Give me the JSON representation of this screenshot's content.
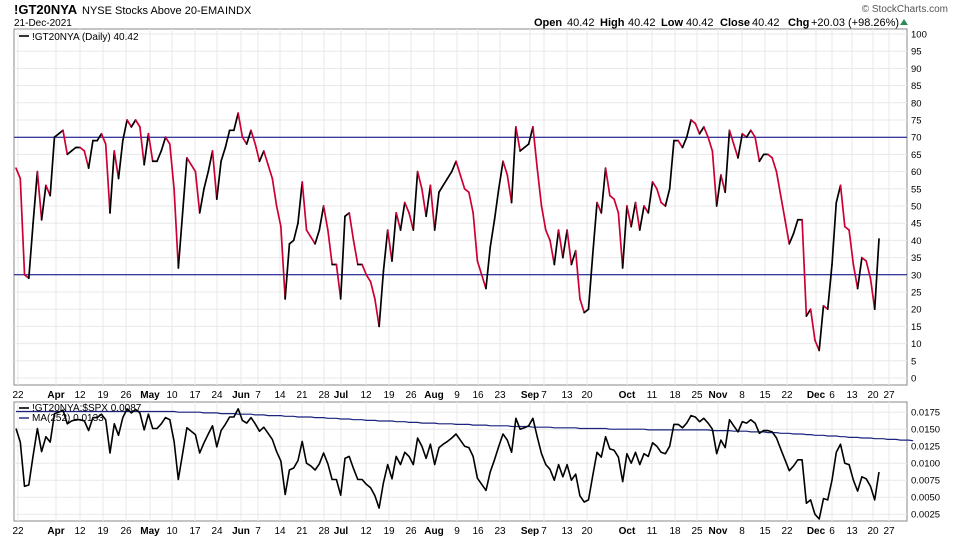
{
  "header": {
    "symbol": "!GT20NYA",
    "name": "NYSE Stocks Above 20-EMA",
    "exchange": "INDX",
    "date": "21-Dec-2021",
    "watermark": "© StockCharts.com",
    "open_label": "Open",
    "open": "40.42",
    "high_label": "High",
    "high": "40.42",
    "low_label": "Low",
    "low": "40.42",
    "close_label": "Close",
    "close": "40.42",
    "chg_label": "Chg",
    "chg": "+20.03 (+98.26%)",
    "up_arrow": "triangle-up-icon"
  },
  "colors": {
    "up": "#000000",
    "down": "#cc0033",
    "reference": "#000080",
    "ma": "#1a237e",
    "grid": "#e8e8e8",
    "border": "#888888"
  },
  "chart_data": [
    {
      "type": "line",
      "legend": "!GT20NYA (Daily) 40.42",
      "ylim": [
        0,
        100
      ],
      "ytick_labels": [
        "0",
        "5",
        "10",
        "15",
        "20",
        "25",
        "30",
        "35",
        "40",
        "45",
        "50",
        "55",
        "60",
        "65",
        "70",
        "75",
        "80",
        "85",
        "90",
        "95",
        "100"
      ],
      "reference_lines": [
        70,
        30
      ],
      "x_tick_labels": [
        "22",
        "Apr",
        "12",
        "19",
        "26",
        "May",
        "10",
        "17",
        "24",
        "Jun",
        "7",
        "14",
        "21",
        "28",
        "Jul",
        "12",
        "19",
        "26",
        "Aug",
        "9",
        "16",
        "23",
        "Sep",
        "7",
        "13",
        "20",
        "Oct",
        "11",
        "18",
        "25",
        "Nov",
        "8",
        "15",
        "22",
        "Dec",
        "6",
        "13",
        "20",
        "27"
      ],
      "series": [
        {
          "values": [
            61,
            58,
            30,
            29,
            45,
            60,
            46,
            56,
            53,
            70,
            71,
            72,
            65,
            66,
            67,
            67,
            66,
            61,
            69,
            69,
            71,
            68,
            48,
            66,
            58,
            69,
            75,
            73,
            75,
            73,
            62,
            71,
            63,
            63,
            66,
            70,
            68,
            55,
            32,
            48,
            64,
            62,
            60,
            48,
            55,
            60,
            66,
            52,
            63,
            67,
            72,
            72,
            77,
            70,
            68,
            72,
            68,
            63,
            66,
            62,
            58,
            50,
            44,
            23,
            39,
            40,
            45,
            57,
            43,
            41,
            39,
            43,
            50,
            43,
            33,
            33,
            23,
            47,
            48,
            40,
            33,
            33,
            30,
            28,
            23,
            15,
            31,
            43,
            34,
            48,
            43,
            51,
            48,
            43,
            60,
            55,
            47,
            56,
            43,
            54,
            56,
            58,
            60,
            63,
            59,
            55,
            54,
            48,
            34,
            30,
            26,
            38,
            46,
            55,
            63,
            59,
            51,
            73,
            66,
            67,
            68,
            73,
            61,
            50,
            43,
            40,
            33,
            43,
            35,
            43,
            33,
            37,
            23,
            19,
            20,
            36,
            51,
            48,
            61,
            53,
            52,
            48,
            32,
            50,
            44,
            51,
            43,
            50,
            48,
            57,
            55,
            51,
            50,
            55,
            69,
            69,
            67,
            70,
            75,
            74,
            71,
            73,
            70,
            66,
            50,
            59,
            54,
            72,
            68,
            64,
            71,
            70,
            72,
            70,
            63,
            65,
            65,
            64,
            60,
            53,
            46,
            39,
            42,
            46,
            46,
            18,
            20,
            11,
            8,
            21,
            20,
            33,
            51,
            56,
            44,
            43,
            33,
            26,
            35,
            34,
            29,
            20,
            40.42
          ]
        }
      ]
    },
    {
      "type": "line",
      "legend": "!GT20NYA:$SPX 0.0087",
      "ma_legend": "MA(252) 0.0133",
      "ylim": [
        0.0015,
        0.019
      ],
      "ytick_labels": [
        "0.0025",
        "0.0050",
        "0.0075",
        "0.0100",
        "0.0125",
        "0.0150",
        "0.0175"
      ],
      "x_tick_labels": [
        "22",
        "Apr",
        "12",
        "19",
        "26",
        "May",
        "10",
        "17",
        "24",
        "Jun",
        "7",
        "14",
        "21",
        "28",
        "Jul",
        "12",
        "19",
        "26",
        "Aug",
        "9",
        "16",
        "23",
        "Sep",
        "7",
        "13",
        "20",
        "Oct",
        "11",
        "18",
        "25",
        "Nov",
        "8",
        "15",
        "22",
        "Dec",
        "6",
        "13",
        "20",
        "27"
      ],
      "series": [
        {
          "name": "!GT20NYA:$SPX",
          "values": [
            0.0151,
            0.0131,
            0.0066,
            0.0068,
            0.0111,
            0.0151,
            0.0117,
            0.0139,
            0.0131,
            0.0173,
            0.0175,
            0.0178,
            0.0158,
            0.0162,
            0.0164,
            0.0164,
            0.0162,
            0.0148,
            0.0167,
            0.0167,
            0.0172,
            0.0164,
            0.0115,
            0.0158,
            0.0141,
            0.0167,
            0.018,
            0.0174,
            0.0179,
            0.0174,
            0.0149,
            0.0172,
            0.0151,
            0.0151,
            0.0158,
            0.0167,
            0.0164,
            0.0132,
            0.0076,
            0.0114,
            0.0152,
            0.0147,
            0.0142,
            0.0115,
            0.013,
            0.0143,
            0.0155,
            0.0124,
            0.0148,
            0.0157,
            0.0168,
            0.0168,
            0.018,
            0.0163,
            0.0159,
            0.0167,
            0.0158,
            0.0147,
            0.0153,
            0.0144,
            0.0135,
            0.0117,
            0.0103,
            0.0054,
            0.009,
            0.0093,
            0.0104,
            0.0132,
            0.01,
            0.0096,
            0.009,
            0.0099,
            0.0115,
            0.0099,
            0.0076,
            0.0076,
            0.0053,
            0.0107,
            0.011,
            0.0092,
            0.0076,
            0.0076,
            0.0069,
            0.0064,
            0.0052,
            0.0034,
            0.0071,
            0.0098,
            0.0077,
            0.011,
            0.0098,
            0.0116,
            0.011,
            0.0098,
            0.0137,
            0.0125,
            0.0107,
            0.0128,
            0.0098,
            0.0123,
            0.0128,
            0.0132,
            0.0137,
            0.0143,
            0.0134,
            0.0125,
            0.0123,
            0.011,
            0.0078,
            0.0069,
            0.006,
            0.0087,
            0.0105,
            0.0125,
            0.0143,
            0.0134,
            0.0116,
            0.0166,
            0.015,
            0.0152,
            0.0155,
            0.0166,
            0.0139,
            0.0114,
            0.0098,
            0.0091,
            0.0075,
            0.0098,
            0.008,
            0.0098,
            0.0075,
            0.0084,
            0.0052,
            0.0043,
            0.0046,
            0.0082,
            0.0116,
            0.0109,
            0.0139,
            0.0121,
            0.0119,
            0.0109,
            0.0073,
            0.0114,
            0.01,
            0.0116,
            0.0098,
            0.0114,
            0.011,
            0.013,
            0.0125,
            0.0116,
            0.0114,
            0.0125,
            0.0157,
            0.0157,
            0.0152,
            0.0159,
            0.017,
            0.0168,
            0.0161,
            0.0166,
            0.0159,
            0.015,
            0.0114,
            0.0134,
            0.0123,
            0.0164,
            0.0155,
            0.0146,
            0.0161,
            0.0159,
            0.0164,
            0.0159,
            0.0144,
            0.0148,
            0.0148,
            0.0146,
            0.0137,
            0.0121,
            0.0105,
            0.0089,
            0.0096,
            0.0105,
            0.0105,
            0.0041,
            0.0046,
            0.0025,
            0.0018,
            0.0048,
            0.0046,
            0.0075,
            0.0116,
            0.0128,
            0.01,
            0.0098,
            0.0075,
            0.0059,
            0.008,
            0.0077,
            0.0066,
            0.0046,
            0.0087
          ]
        },
        {
          "name": "MA(252)",
          "values": [
            0.0176,
            0.0176,
            0.0176,
            0.0176,
            0.0176,
            0.0176,
            0.0176,
            0.0176,
            0.0176,
            0.0176,
            0.0176,
            0.0176,
            0.0176,
            0.0176,
            0.0176,
            0.0176,
            0.0176,
            0.0176,
            0.0176,
            0.0176,
            0.0176,
            0.0176,
            0.0176,
            0.0176,
            0.0176,
            0.0176,
            0.0176,
            0.0176,
            0.0176,
            0.0176,
            0.0176,
            0.0176,
            0.0176,
            0.0176,
            0.0176,
            0.0176,
            0.0176,
            0.0176,
            0.0175,
            0.0175,
            0.0175,
            0.0175,
            0.0175,
            0.0175,
            0.0174,
            0.0174,
            0.0174,
            0.0174,
            0.0173,
            0.0173,
            0.0173,
            0.0173,
            0.0172,
            0.0172,
            0.0172,
            0.0172,
            0.0171,
            0.0171,
            0.0171,
            0.017,
            0.017,
            0.017,
            0.017,
            0.0169,
            0.0169,
            0.0169,
            0.0168,
            0.0168,
            0.0168,
            0.0168,
            0.0167,
            0.0167,
            0.0167,
            0.0166,
            0.0166,
            0.0166,
            0.0165,
            0.0165,
            0.0165,
            0.0164,
            0.0164,
            0.0164,
            0.0163,
            0.0163,
            0.0163,
            0.0162,
            0.0162,
            0.0162,
            0.0162,
            0.0161,
            0.0161,
            0.0161,
            0.016,
            0.016,
            0.016,
            0.0159,
            0.0159,
            0.0159,
            0.0159,
            0.0158,
            0.0158,
            0.0158,
            0.0158,
            0.0157,
            0.0157,
            0.0157,
            0.0157,
            0.0156,
            0.0156,
            0.0156,
            0.0156,
            0.0155,
            0.0155,
            0.0155,
            0.0155,
            0.0155,
            0.0154,
            0.0154,
            0.0154,
            0.0154,
            0.0154,
            0.0153,
            0.0153,
            0.0153,
            0.0153,
            0.0153,
            0.0152,
            0.0152,
            0.0152,
            0.0152,
            0.0152,
            0.0152,
            0.0151,
            0.0151,
            0.0151,
            0.0151,
            0.0151,
            0.0151,
            0.0151,
            0.015,
            0.015,
            0.015,
            0.015,
            0.015,
            0.015,
            0.015,
            0.015,
            0.015,
            0.0149,
            0.0149,
            0.0149,
            0.0149,
            0.0149,
            0.0149,
            0.0149,
            0.0149,
            0.0149,
            0.0149,
            0.0149,
            0.0149,
            0.0149,
            0.0149,
            0.0149,
            0.0148,
            0.0148,
            0.0148,
            0.0148,
            0.0148,
            0.0147,
            0.0147,
            0.0147,
            0.0147,
            0.0146,
            0.0146,
            0.0146,
            0.0146,
            0.0145,
            0.0145,
            0.0145,
            0.0144,
            0.0144,
            0.0144,
            0.0143,
            0.0143,
            0.0143,
            0.0142,
            0.0142,
            0.0141,
            0.0141,
            0.0141,
            0.014,
            0.014,
            0.014,
            0.0139,
            0.0139,
            0.0138,
            0.0138,
            0.0138,
            0.0137,
            0.0137,
            0.0137,
            0.0136,
            0.0136,
            0.0136,
            0.0135,
            0.0135,
            0.0135,
            0.0134,
            0.0134,
            0.0134,
            0.0133
          ]
        }
      ]
    }
  ]
}
